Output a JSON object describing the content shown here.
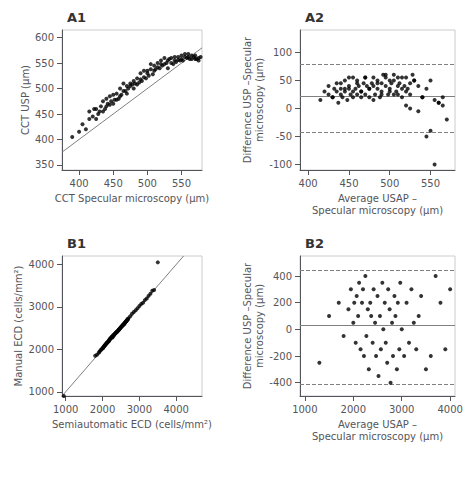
{
  "chart_data": [
    {
      "type": "scatter",
      "title": "A1",
      "xlabel": "CCT Specular microscopy (μm)",
      "ylabel": "CCT USP (μm)",
      "xlim": [
        375,
        580
      ],
      "ylim": [
        340,
        615
      ],
      "xticks": [
        400,
        450,
        500,
        550
      ],
      "yticks": [
        350,
        400,
        450,
        500,
        550,
        600
      ],
      "grid": false,
      "series": [
        {
          "type": "scatter",
          "color": "#000000",
          "x": [
            390,
            400,
            405,
            410,
            415,
            415,
            420,
            422,
            425,
            425,
            428,
            430,
            432,
            435,
            435,
            438,
            440,
            440,
            442,
            445,
            445,
            447,
            450,
            450,
            452,
            455,
            455,
            458,
            460,
            460,
            462,
            465,
            465,
            468,
            470,
            470,
            472,
            475,
            475,
            478,
            480,
            480,
            482,
            485,
            485,
            488,
            490,
            490,
            492,
            495,
            495,
            498,
            500,
            500,
            502,
            505,
            505,
            508,
            510,
            510,
            512,
            515,
            515,
            518,
            520,
            520,
            522,
            525,
            525,
            528,
            530,
            530,
            532,
            535,
            535,
            538,
            540,
            540,
            542,
            545,
            545,
            548,
            550,
            550,
            552,
            555,
            555,
            558,
            560,
            560,
            562,
            565,
            565,
            568,
            570,
            570,
            572,
            575,
            575,
            578
          ],
          "values": [
            405,
            415,
            430,
            420,
            455,
            440,
            445,
            460,
            440,
            460,
            450,
            455,
            465,
            455,
            475,
            460,
            465,
            480,
            470,
            468,
            485,
            475,
            470,
            488,
            478,
            478,
            490,
            480,
            500,
            485,
            488,
            495,
            510,
            495,
            505,
            490,
            500,
            510,
            505,
            508,
            515,
            500,
            510,
            520,
            508,
            512,
            518,
            530,
            515,
            522,
            535,
            520,
            530,
            535,
            525,
            538,
            548,
            528,
            535,
            545,
            538,
            542,
            550,
            540,
            548,
            555,
            545,
            548,
            560,
            550,
            555,
            540,
            558,
            550,
            560,
            548,
            555,
            562,
            552,
            556,
            562,
            555,
            558,
            565,
            555,
            562,
            568,
            560,
            562,
            568,
            558,
            565,
            558,
            562,
            558,
            565,
            558,
            555,
            560,
            562
          ]
        },
        {
          "type": "line",
          "color": "#808080",
          "line_style": "solid",
          "x": [
            375,
            580
          ],
          "values": [
            375,
            580
          ]
        }
      ]
    },
    {
      "type": "scatter",
      "title": "A2",
      "xlabel": "Average USAP –\nSpecular microscopy (μm)",
      "ylabel": "Difference USP –Specular\nmicroscopy (μm)",
      "xlim": [
        390,
        580
      ],
      "ylim": [
        -110,
        140
      ],
      "xticks": [
        400,
        450,
        500,
        550
      ],
      "yticks": [
        -100,
        -50,
        0,
        50,
        100
      ],
      "grid": false,
      "series": [
        {
          "type": "scatter",
          "color": "#000000",
          "x": [
            415,
            420,
            425,
            430,
            432,
            435,
            437,
            440,
            440,
            442,
            445,
            445,
            448,
            450,
            450,
            452,
            455,
            455,
            458,
            460,
            460,
            462,
            465,
            465,
            468,
            470,
            470,
            472,
            475,
            475,
            478,
            480,
            480,
            482,
            485,
            485,
            488,
            490,
            490,
            492,
            495,
            495,
            498,
            500,
            500,
            502,
            505,
            505,
            508,
            510,
            510,
            512,
            515,
            515,
            518,
            520,
            520,
            522,
            525,
            525,
            528,
            530,
            535,
            540,
            545,
            550,
            555,
            560,
            565,
            425,
            430,
            435,
            440,
            445,
            450,
            455,
            460,
            465,
            470,
            475,
            480,
            485,
            490,
            495,
            500,
            505,
            510,
            515,
            520,
            525,
            530,
            535,
            540,
            545,
            550,
            555,
            560,
            565,
            570
          ],
          "values": [
            15,
            30,
            25,
            20,
            35,
            30,
            10,
            25,
            45,
            20,
            35,
            30,
            15,
            35,
            55,
            25,
            30,
            20,
            35,
            50,
            25,
            40,
            30,
            20,
            45,
            55,
            25,
            40,
            35,
            20,
            45,
            55,
            40,
            25,
            35,
            50,
            20,
            45,
            30,
            60,
            40,
            55,
            25,
            50,
            35,
            45,
            25,
            60,
            30,
            55,
            25,
            45,
            35,
            20,
            40,
            30,
            55,
            35,
            45,
            25,
            60,
            50,
            40,
            20,
            35,
            50,
            15,
            10,
            5,
            40,
            20,
            45,
            35,
            50,
            40,
            55,
            45,
            30,
            55,
            35,
            15,
            45,
            25,
            60,
            30,
            50,
            40,
            55,
            5,
            0,
            50,
            -5,
            20,
            -50,
            -40,
            -100,
            10,
            20,
            -20
          ]
        },
        {
          "type": "hline",
          "color": "#808080",
          "line_style": "solid",
          "values": [
            22
          ]
        },
        {
          "type": "hline",
          "color": "#808080",
          "line_style": "dashed",
          "values": [
            78,
            -42
          ]
        }
      ]
    },
    {
      "type": "scatter",
      "title": "B1",
      "xlabel": "Semiautomatic ECD (cells/mm²)",
      "ylabel": "Manual ECD (cells/mm²)",
      "xlim": [
        900,
        4700
      ],
      "ylim": [
        900,
        4200
      ],
      "xticks": [
        1000,
        2000,
        3000,
        4000
      ],
      "yticks": [
        1000,
        2000,
        3000,
        4000
      ],
      "grid": false,
      "series": [
        {
          "type": "scatter",
          "color": "#000000",
          "x": [
            950,
            1800,
            1850,
            1900,
            1920,
            1950,
            1970,
            2000,
            2010,
            2020,
            2030,
            2040,
            2050,
            2060,
            2070,
            2080,
            2090,
            2100,
            2110,
            2120,
            2130,
            2140,
            2150,
            2160,
            2170,
            2180,
            2190,
            2200,
            2210,
            2220,
            2230,
            2240,
            2250,
            2260,
            2270,
            2280,
            2290,
            2300,
            2310,
            2320,
            2330,
            2340,
            2350,
            2360,
            2370,
            2380,
            2390,
            2400,
            2410,
            2420,
            2430,
            2440,
            2450,
            2460,
            2470,
            2480,
            2490,
            2500,
            2510,
            2520,
            2530,
            2540,
            2550,
            2560,
            2570,
            2580,
            2590,
            2600,
            2610,
            2620,
            2630,
            2640,
            2650,
            2660,
            2670,
            2680,
            2690,
            2700,
            2750,
            2800,
            2850,
            2900,
            2950,
            3000,
            3050,
            3100,
            3150,
            3200,
            3250,
            3300,
            3350,
            3400,
            3500
          ],
          "values": [
            900,
            1850,
            1870,
            1920,
            1950,
            1980,
            2000,
            2020,
            2030,
            2040,
            2060,
            2070,
            2080,
            2090,
            2100,
            2110,
            2120,
            2130,
            2150,
            2150,
            2160,
            2170,
            2180,
            2190,
            2200,
            2200,
            2230,
            2240,
            2250,
            2260,
            2270,
            2280,
            2290,
            2300,
            2280,
            2310,
            2330,
            2320,
            2340,
            2350,
            2360,
            2370,
            2380,
            2390,
            2400,
            2400,
            2410,
            2420,
            2430,
            2440,
            2450,
            2460,
            2470,
            2480,
            2490,
            2500,
            2510,
            2520,
            2530,
            2540,
            2550,
            2560,
            2570,
            2580,
            2590,
            2600,
            2590,
            2620,
            2630,
            2640,
            2650,
            2660,
            2670,
            2680,
            2700,
            2700,
            2710,
            2730,
            2780,
            2840,
            2880,
            2920,
            2970,
            3020,
            3070,
            3100,
            3160,
            3200,
            3260,
            3310,
            3380,
            3400,
            4050
          ]
        },
        {
          "type": "line",
          "color": "#808080",
          "line_style": "solid",
          "x": [
            900,
            4200
          ],
          "values": [
            900,
            4200
          ]
        }
      ]
    },
    {
      "type": "scatter",
      "title": "B2",
      "xlabel": "Average USAP –\nSpecular microscopy (μm)",
      "ylabel": "Difference USP –Specular\nmicroscopy (μm)",
      "xlim": [
        900,
        4100
      ],
      "ylim": [
        -500,
        550
      ],
      "xticks": [
        1000,
        2000,
        3000,
        4000
      ],
      "yticks": [
        -400,
        -200,
        0,
        200,
        400
      ],
      "grid": false,
      "series": [
        {
          "type": "scatter",
          "color": "#000000",
          "x": [
            1300,
            1500,
            1700,
            1800,
            1900,
            1950,
            2000,
            2020,
            2050,
            2070,
            2100,
            2120,
            2150,
            2180,
            2200,
            2220,
            2250,
            2270,
            2300,
            2320,
            2350,
            2370,
            2400,
            2420,
            2450,
            2470,
            2500,
            2520,
            2550,
            2570,
            2600,
            2620,
            2650,
            2670,
            2700,
            2720,
            2750,
            2770,
            2800,
            2820,
            2850,
            2870,
            2900,
            2920,
            2950,
            2970,
            3000,
            3050,
            3100,
            3150,
            3200,
            3250,
            3300,
            3350,
            3400,
            3500,
            3600,
            3700,
            3800,
            3900,
            4000
          ],
          "values": [
            -250,
            100,
            200,
            -50,
            150,
            300,
            50,
            200,
            -100,
            250,
            100,
            350,
            -150,
            200,
            300,
            -200,
            400,
            -50,
            150,
            -300,
            200,
            100,
            -100,
            300,
            50,
            -200,
            250,
            -350,
            100,
            -150,
            350,
            0,
            200,
            -100,
            -250,
            300,
            150,
            -400,
            50,
            -200,
            250,
            100,
            -300,
            200,
            -150,
            350,
            0,
            -200,
            200,
            -100,
            300,
            50,
            -150,
            100,
            250,
            -300,
            -200,
            400,
            200,
            -150,
            300
          ]
        },
        {
          "type": "hline",
          "color": "#808080",
          "line_style": "solid",
          "values": [
            30
          ]
        },
        {
          "type": "hline",
          "color": "#808080",
          "line_style": "dashed",
          "values": [
            440,
            -410
          ]
        }
      ]
    }
  ]
}
